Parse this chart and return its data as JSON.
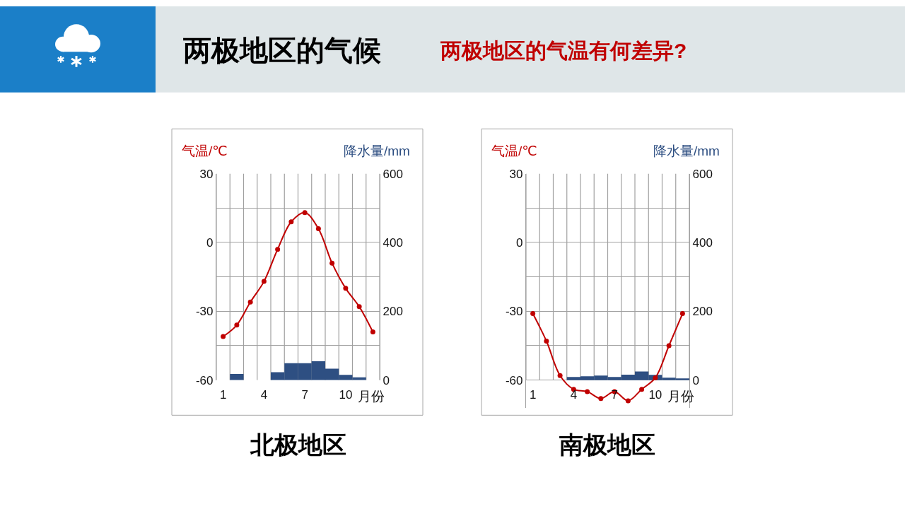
{
  "chart_data": [
    {
      "type": "other",
      "title": "两极地区的气候",
      "subtitle": "两极地区的气温有何差异?"
    },
    {
      "type": "bar",
      "title": "北极地区",
      "xlabel": "月份",
      "ylabel": "气温/℃",
      "y2label": "降水量/mm",
      "categories": [
        "1",
        null,
        null,
        "4",
        null,
        null,
        "7",
        null,
        null,
        "10",
        null,
        null
      ],
      "series": [
        {
          "type": "bar",
          "axis": "y2",
          "color": "#2e4f82",
          "values": [
            0,
            18,
            0,
            0,
            23,
            49,
            49,
            55,
            33,
            15,
            8,
            0
          ]
        },
        {
          "type": "line",
          "color": "#c00000",
          "values": [
            -41,
            -36,
            -26,
            -17,
            -3,
            9,
            13,
            6,
            -9,
            -20,
            -28,
            -39
          ]
        }
      ],
      "ylim": [
        -60,
        30
      ],
      "yticks": [
        30,
        {
          "value": 15,
          "label": null
        },
        0,
        {
          "value": -15,
          "label": null
        },
        -30,
        {
          "value": -45,
          "label": null
        },
        -60
      ],
      "y2lim": [
        0,
        600
      ],
      "y2ticks": [
        0,
        200,
        400,
        600
      ],
      "grid": true,
      "marker": "circle",
      "line_style": "solid"
    },
    {
      "type": "bar",
      "title": "南极地区",
      "xlabel": "月份",
      "ylabel": "气温/℃",
      "y2label": "降水量/mm",
      "categories": [
        "1",
        null,
        null,
        "4",
        null,
        null,
        "7",
        null,
        null,
        "10",
        null,
        null
      ],
      "series": [
        {
          "type": "bar",
          "axis": "y2",
          "color": "#2e4f82",
          "values": [
            0,
            0,
            0,
            9,
            11,
            13,
            9,
            16,
            25,
            15,
            7,
            5
          ]
        },
        {
          "type": "line",
          "color": "#c00000",
          "values": [
            -31,
            -43,
            -58,
            -64,
            -65,
            -68,
            -65,
            -69,
            -64,
            -59,
            -45,
            -31
          ]
        }
      ],
      "ylim": [
        -72,
        30
      ],
      "yticks": [
        30,
        {
          "value": 15,
          "label": null
        },
        0,
        {
          "value": -15,
          "label": null
        },
        -30,
        {
          "value": -45,
          "label": null
        },
        -60
      ],
      "y2lim": [
        -80,
        600
      ],
      "y2ticks": [
        0,
        200,
        400,
        600
      ],
      "grid": true,
      "marker": "circle",
      "line_style": "solid"
    }
  ]
}
